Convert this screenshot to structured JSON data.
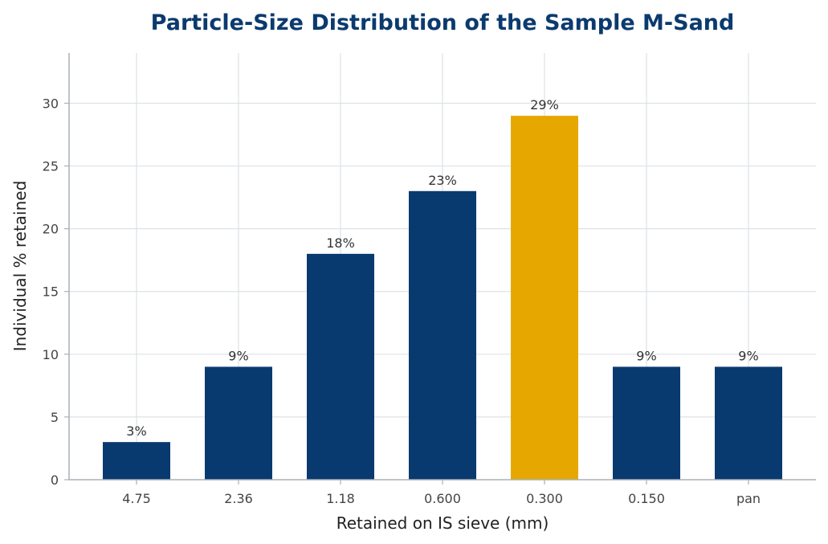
{
  "chart_data": {
    "type": "bar",
    "title": "Particle-Size Distribution of the Sample M-Sand",
    "xlabel": "Retained on IS sieve  (mm)",
    "ylabel": "Individual % retained",
    "categories": [
      "4.75",
      "2.36",
      "1.18",
      "0.600",
      "0.300",
      "0.150",
      "pan"
    ],
    "values": [
      3,
      9,
      18,
      23,
      29,
      9,
      9
    ],
    "data_labels": [
      "3%",
      "9%",
      "18%",
      "23%",
      "29%",
      "9%",
      "9%"
    ],
    "ylim": [
      0,
      34
    ],
    "yticks": [
      0,
      5,
      10,
      15,
      20,
      25,
      30
    ],
    "grid": true,
    "colors": {
      "bar": "#083a70",
      "highlight": "#e6a800",
      "highlight_category": "0.300",
      "title": "#0b3a6e"
    }
  }
}
